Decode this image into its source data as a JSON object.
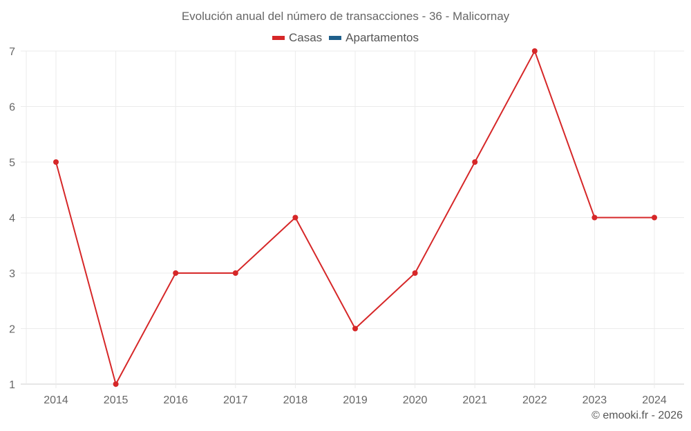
{
  "chart": {
    "title": "Evolución anual del número de transacciones - 36 - Malicornay",
    "credit": "© emooki.fr - 2026",
    "legend": [
      {
        "label": "Casas",
        "color": "#d62728"
      },
      {
        "label": "Apartamentos",
        "color": "#1f5f8b"
      }
    ]
  },
  "chart_data": {
    "type": "line",
    "title": "Evolución anual del número de transacciones - 36 - Malicornay",
    "categories": [
      "2014",
      "2015",
      "2016",
      "2017",
      "2018",
      "2019",
      "2020",
      "2021",
      "2022",
      "2023",
      "2024"
    ],
    "series": [
      {
        "name": "Casas",
        "color": "#d62728",
        "values": [
          5,
          1,
          3,
          3,
          4,
          2,
          3,
          5,
          7,
          4,
          4
        ]
      },
      {
        "name": "Apartamentos",
        "color": "#1f5f8b",
        "values": []
      }
    ],
    "xlabel": "",
    "ylabel": "",
    "ylim": [
      1,
      7
    ],
    "yticks": [
      1,
      2,
      3,
      4,
      5,
      6,
      7
    ],
    "grid": true,
    "legend_position": "top"
  }
}
